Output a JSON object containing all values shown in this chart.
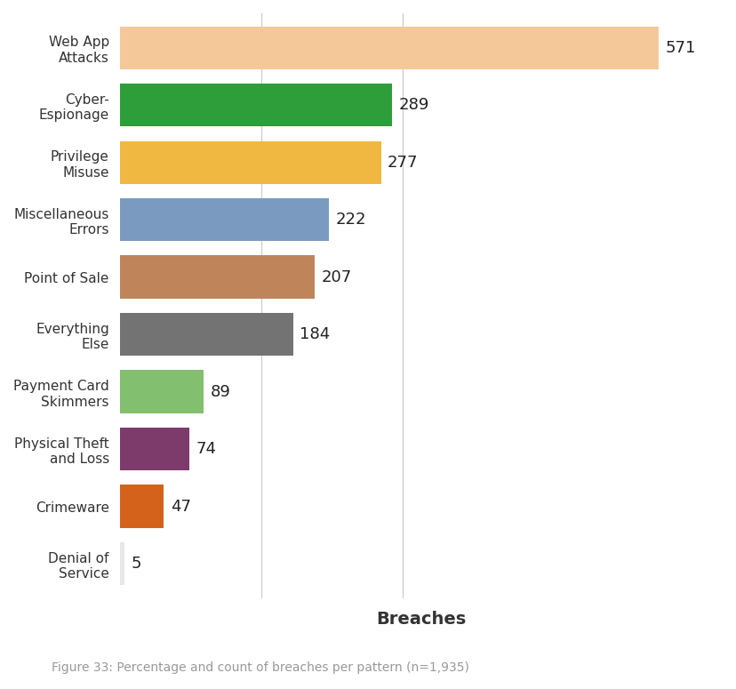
{
  "categories": [
    "Denial of\nService",
    "Crimeware",
    "Physical Theft\nand Loss",
    "Payment Card\nSkimmers",
    "Everything\nElse",
    "Point of Sale",
    "Miscellaneous\nErrors",
    "Privilege\nMisuse",
    "Cyber-\nEspionage",
    "Web App\nAttacks"
  ],
  "values": [
    5,
    47,
    74,
    89,
    184,
    207,
    222,
    277,
    289,
    571
  ],
  "colors": [
    "#e8e8e8",
    "#d4621a",
    "#7d3b6b",
    "#82bf6e",
    "#737373",
    "#c0845a",
    "#7a9bbf",
    "#f0b840",
    "#2d9e3a",
    "#f5c89a"
  ],
  "xlabel": "Breaches",
  "caption": "Figure 33: Percentage and count of breaches per pattern (n=1,935)",
  "xlim": [
    0,
    640
  ],
  "grid_lines": [
    150,
    300
  ],
  "background_color": "#ffffff",
  "bar_height": 0.75,
  "label_fontsize": 13,
  "ytick_fontsize": 11,
  "xlabel_fontsize": 14,
  "caption_fontsize": 10,
  "caption_color": "#999999"
}
